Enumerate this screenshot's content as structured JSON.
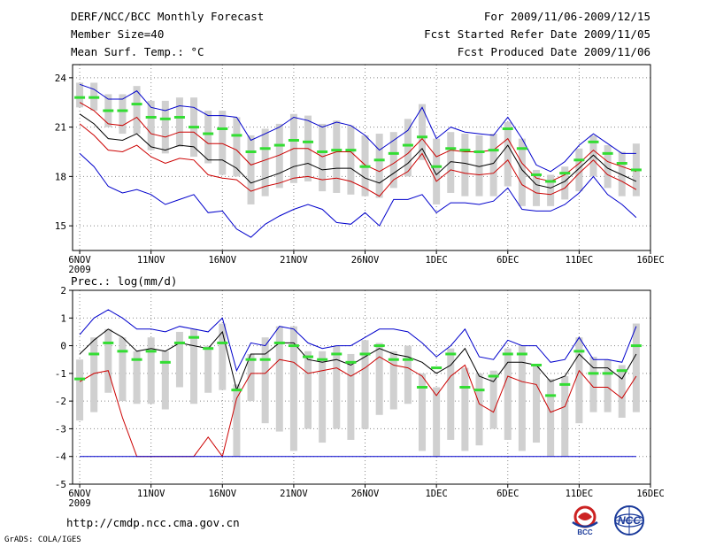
{
  "header": {
    "title": "DERF/NCC/BCC Monthly Forecast",
    "member_size": "Member Size=40",
    "variable": "Mean Surf. Temp.: °C",
    "period": "For 2009/11/06-2009/12/15",
    "start_date": "Fcst Started Refer Date 2009/11/05",
    "produced_date": "Fcst Produced Date 2009/11/06"
  },
  "footer": {
    "url": "http://cmdp.ncc.cma.gov.cn",
    "credit": "GrADS: COLA/IGES",
    "logo_bcc_text": "BCC",
    "logo_ncc_text": "NCC"
  },
  "colors": {
    "max_line": "#0000cc",
    "min_line": "#0000cc",
    "upper_line": "#cc0000",
    "lower_line": "#cc0000",
    "mean_line": "#000000",
    "box": "#d0d0d0",
    "mark": "#33dd33"
  },
  "chart_data": [
    {
      "type": "line",
      "title": "Mean Surf. Temp.: °C",
      "x_tick_labels": [
        "6NOV",
        "11NOV",
        "16NOV",
        "21NOV",
        "26NOV",
        "1DEC",
        "6DEC",
        "11DEC",
        "16DEC"
      ],
      "x_year_label": "2009",
      "x_tick_days": [
        0,
        5,
        10,
        15,
        20,
        25,
        30,
        35,
        40
      ],
      "xlim": [
        -0.5,
        40
      ],
      "ylim": [
        13.5,
        24.8
      ],
      "y_ticks": [
        15,
        18,
        21,
        24
      ],
      "days": [
        0,
        1,
        2,
        3,
        4,
        5,
        6,
        7,
        8,
        9,
        10,
        11,
        12,
        13,
        14,
        15,
        16,
        17,
        18,
        19,
        20,
        21,
        22,
        23,
        24,
        25,
        26,
        27,
        28,
        29,
        30,
        31,
        32,
        33,
        34,
        35,
        36,
        37,
        38,
        39
      ],
      "series": [
        {
          "name": "max",
          "values": [
            23.6,
            23.3,
            22.7,
            22.7,
            23.2,
            22.2,
            22.0,
            22.3,
            22.2,
            21.7,
            21.7,
            21.6,
            20.2,
            20.6,
            21.0,
            21.6,
            21.4,
            21.0,
            21.3,
            21.1,
            20.5,
            19.6,
            20.2,
            20.8,
            22.2,
            20.3,
            21.0,
            20.7,
            20.6,
            20.5,
            21.6,
            20.3,
            18.7,
            18.3,
            18.9,
            19.9,
            20.6,
            20.0,
            19.4,
            19.4
          ]
        },
        {
          "name": "upper",
          "values": [
            22.5,
            22.0,
            21.2,
            21.1,
            21.6,
            20.6,
            20.4,
            20.7,
            20.7,
            20.0,
            20.0,
            19.6,
            18.7,
            19.0,
            19.3,
            19.7,
            19.7,
            19.2,
            19.5,
            19.5,
            18.7,
            18.3,
            18.8,
            19.4,
            20.3,
            19.2,
            19.6,
            19.5,
            19.5,
            19.6,
            20.3,
            18.8,
            17.9,
            17.7,
            18.1,
            18.8,
            19.6,
            18.9,
            18.6,
            18.3
          ]
        },
        {
          "name": "mean",
          "values": [
            21.8,
            21.2,
            20.3,
            20.2,
            20.6,
            19.8,
            19.6,
            19.9,
            19.8,
            19.0,
            19.0,
            18.5,
            17.6,
            17.9,
            18.2,
            18.6,
            18.8,
            18.4,
            18.5,
            18.5,
            17.9,
            17.6,
            18.2,
            18.8,
            19.7,
            18.1,
            18.9,
            18.8,
            18.6,
            18.8,
            19.9,
            18.4,
            17.5,
            17.3,
            17.7,
            18.5,
            19.3,
            18.5,
            18.1,
            17.7
          ]
        },
        {
          "name": "lower",
          "values": [
            21.2,
            20.5,
            19.6,
            19.5,
            19.9,
            19.2,
            18.8,
            19.1,
            19.0,
            18.1,
            17.9,
            17.8,
            17.1,
            17.4,
            17.6,
            17.9,
            18.0,
            17.8,
            17.9,
            17.7,
            17.3,
            16.8,
            17.8,
            18.3,
            19.4,
            17.7,
            18.4,
            18.2,
            18.1,
            18.2,
            19.0,
            17.5,
            17.0,
            16.9,
            17.3,
            18.2,
            19.0,
            18.1,
            17.7,
            17.2
          ]
        },
        {
          "name": "min",
          "values": [
            19.4,
            18.6,
            17.4,
            17.0,
            17.2,
            16.9,
            16.3,
            16.6,
            16.9,
            15.8,
            15.9,
            14.8,
            14.3,
            15.1,
            15.6,
            16.0,
            16.3,
            16.0,
            15.2,
            15.1,
            15.8,
            15.0,
            16.6,
            16.6,
            16.9,
            15.8,
            16.4,
            16.4,
            16.3,
            16.5,
            17.3,
            16.0,
            15.9,
            15.9,
            16.3,
            17.0,
            18.0,
            16.9,
            16.3,
            15.5
          ]
        },
        {
          "name": "member-mark",
          "values": [
            22.8,
            22.8,
            22.0,
            22.0,
            22.4,
            21.6,
            21.5,
            21.6,
            21.0,
            20.6,
            20.9,
            20.5,
            19.5,
            19.7,
            19.9,
            20.2,
            20.1,
            19.5,
            19.6,
            19.6,
            18.6,
            19.0,
            19.4,
            19.9,
            20.4,
            18.6,
            19.7,
            19.6,
            19.5,
            19.6,
            20.9,
            19.7,
            18.1,
            17.7,
            18.2,
            19.0,
            20.1,
            19.4,
            18.8,
            18.4
          ]
        }
      ],
      "box_ranges": [
        [
          22.2,
          23.7
        ],
        [
          22.0,
          23.7
        ],
        [
          21.0,
          23.0
        ],
        [
          20.6,
          23.0
        ],
        [
          20.6,
          23.5
        ],
        [
          19.6,
          22.6
        ],
        [
          19.4,
          22.6
        ],
        [
          19.8,
          22.8
        ],
        [
          19.2,
          22.8
        ],
        [
          18.8,
          22.0
        ],
        [
          18.1,
          22.0
        ],
        [
          18.0,
          21.6
        ],
        [
          16.3,
          20.5
        ],
        [
          16.8,
          20.9
        ],
        [
          17.3,
          21.2
        ],
        [
          17.6,
          21.8
        ],
        [
          17.7,
          21.7
        ],
        [
          17.1,
          21.2
        ],
        [
          17.0,
          21.4
        ],
        [
          16.9,
          21.1
        ],
        [
          16.8,
          20.5
        ],
        [
          16.7,
          20.6
        ],
        [
          17.3,
          20.7
        ],
        [
          18.0,
          21.5
        ],
        [
          19.0,
          22.4
        ],
        [
          16.3,
          20.3
        ],
        [
          17.0,
          20.7
        ],
        [
          16.8,
          20.6
        ],
        [
          16.8,
          20.5
        ],
        [
          16.8,
          20.6
        ],
        [
          17.4,
          21.3
        ],
        [
          16.2,
          20.3
        ],
        [
          16.2,
          18.4
        ],
        [
          16.2,
          18.1
        ],
        [
          16.6,
          18.6
        ],
        [
          17.1,
          19.7
        ],
        [
          18.0,
          20.5
        ],
        [
          17.3,
          19.9
        ],
        [
          16.8,
          19.5
        ],
        [
          16.8,
          20.0
        ]
      ]
    },
    {
      "type": "line",
      "title": "Prec.: log(mm/d)",
      "x_tick_labels": [
        "6NOV",
        "11NOV",
        "16NOV",
        "21NOV",
        "26NOV",
        "1DEC",
        "6DEC",
        "11DEC",
        "16DEC"
      ],
      "x_year_label": "2009",
      "x_tick_days": [
        0,
        5,
        10,
        15,
        20,
        25,
        30,
        35,
        40
      ],
      "xlim": [
        -0.5,
        40
      ],
      "ylim": [
        -5,
        2
      ],
      "y_ticks": [
        -5,
        -4,
        -3,
        -2,
        -1,
        0,
        1,
        2
      ],
      "days": [
        0,
        1,
        2,
        3,
        4,
        5,
        6,
        7,
        8,
        9,
        10,
        11,
        12,
        13,
        14,
        15,
        16,
        17,
        18,
        19,
        20,
        21,
        22,
        23,
        24,
        25,
        26,
        27,
        28,
        29,
        30,
        31,
        32,
        33,
        34,
        35,
        36,
        37,
        38,
        39
      ],
      "series": [
        {
          "name": "max",
          "values": [
            0.4,
            1.0,
            1.3,
            1.0,
            0.6,
            0.6,
            0.5,
            0.7,
            0.6,
            0.5,
            1.0,
            -0.9,
            0.1,
            0.0,
            0.7,
            0.6,
            0.1,
            -0.1,
            0.0,
            0.0,
            0.3,
            0.6,
            0.6,
            0.5,
            0.1,
            -0.4,
            0.0,
            0.6,
            -0.4,
            -0.5,
            0.2,
            0.0,
            0.0,
            -0.6,
            -0.5,
            0.3,
            -0.5,
            -0.5,
            -0.6,
            0.7
          ]
        },
        {
          "name": "mean",
          "values": [
            -0.3,
            0.2,
            0.6,
            0.3,
            -0.2,
            -0.1,
            -0.2,
            0.1,
            0.0,
            -0.1,
            0.5,
            -1.6,
            -0.3,
            -0.3,
            0.1,
            0.1,
            -0.5,
            -0.6,
            -0.5,
            -0.7,
            -0.4,
            -0.1,
            -0.3,
            -0.4,
            -0.6,
            -1.0,
            -0.7,
            -0.1,
            -1.1,
            -1.3,
            -0.6,
            -0.6,
            -0.7,
            -1.3,
            -1.1,
            -0.3,
            -0.8,
            -0.8,
            -1.2,
            -0.3
          ]
        },
        {
          "name": "upper",
          "values": [
            -1.3,
            -1.0,
            -0.9,
            -2.6,
            -4.0,
            -4.0,
            -4.0,
            -4.0,
            -4.0,
            -3.3,
            -4.0,
            -1.9,
            -1.0,
            -1.0,
            -0.5,
            -0.6,
            -1.0,
            -0.9,
            -0.8,
            -1.1,
            -0.8,
            -0.4,
            -0.7,
            -0.8,
            -1.1,
            -1.8,
            -1.1,
            -0.7,
            -2.1,
            -2.4,
            -1.1,
            -1.3,
            -1.4,
            -2.4,
            -2.2,
            -0.9,
            -1.5,
            -1.5,
            -1.9,
            -1.1
          ]
        },
        {
          "name": "min",
          "values": [
            -4.0,
            -4.0,
            -4.0,
            -4.0,
            -4.0,
            -4.0,
            -4.0,
            -4.0,
            -4.0,
            -4.0,
            -4.0,
            -4.0,
            -4.0,
            -4.0,
            -4.0,
            -4.0,
            -4.0,
            -4.0,
            -4.0,
            -4.0,
            -4.0,
            -4.0,
            -4.0,
            -4.0,
            -4.0,
            -4.0,
            -4.0,
            -4.0,
            -4.0,
            -4.0,
            -4.0,
            -4.0,
            -4.0,
            -4.0,
            -4.0,
            -4.0,
            -4.0,
            -4.0,
            -4.0,
            -4.0
          ]
        },
        {
          "name": "member-mark",
          "values": [
            -1.2,
            -0.3,
            0.1,
            -0.2,
            -0.5,
            -0.2,
            -0.6,
            0.1,
            0.3,
            -0.1,
            0.1,
            -1.6,
            -0.5,
            -0.5,
            0.1,
            0.0,
            -0.4,
            -0.5,
            -0.3,
            -0.6,
            -0.3,
            0.0,
            -0.5,
            -0.5,
            -1.5,
            -0.8,
            -0.3,
            -1.5,
            -1.6,
            -1.1,
            -0.3,
            -0.3,
            -0.7,
            -1.8,
            -1.4,
            -0.2,
            -1.0,
            -1.0,
            -0.9,
            0.0
          ]
        }
      ],
      "box_ranges": [
        [
          -2.7,
          -0.5
        ],
        [
          -2.4,
          0.3
        ],
        [
          -1.7,
          0.6
        ],
        [
          -2.0,
          0.3
        ],
        [
          -2.1,
          -0.2
        ],
        [
          -2.1,
          0.3
        ],
        [
          -2.3,
          -0.2
        ],
        [
          -1.5,
          0.5
        ],
        [
          -2.1,
          0.6
        ],
        [
          -1.7,
          0.0
        ],
        [
          -1.6,
          0.8
        ],
        [
          -4.0,
          -1.4
        ],
        [
          -2.0,
          -0.3
        ],
        [
          -2.8,
          0.3
        ],
        [
          -3.1,
          0.7
        ],
        [
          -3.8,
          0.7
        ],
        [
          -3.0,
          -0.2
        ],
        [
          -3.5,
          -0.2
        ],
        [
          -3.0,
          0.0
        ],
        [
          -3.4,
          -0.3
        ],
        [
          -3.0,
          0.2
        ],
        [
          -2.5,
          0.1
        ],
        [
          -2.3,
          -0.2
        ],
        [
          -2.1,
          0.0
        ],
        [
          -3.8,
          -1.0
        ],
        [
          -4.0,
          -1.5
        ],
        [
          -3.4,
          -0.1
        ],
        [
          -3.8,
          -0.8
        ],
        [
          -3.6,
          -1.0
        ],
        [
          -3.0,
          -0.9
        ],
        [
          -3.4,
          -0.1
        ],
        [
          -3.8,
          0.0
        ],
        [
          -3.5,
          -0.7
        ],
        [
          -4.0,
          -1.2
        ],
        [
          -4.0,
          -1.1
        ],
        [
          -2.8,
          0.3
        ],
        [
          -2.4,
          -0.4
        ],
        [
          -2.4,
          -0.5
        ],
        [
          -2.6,
          -0.7
        ],
        [
          -2.4,
          0.8
        ]
      ]
    }
  ]
}
